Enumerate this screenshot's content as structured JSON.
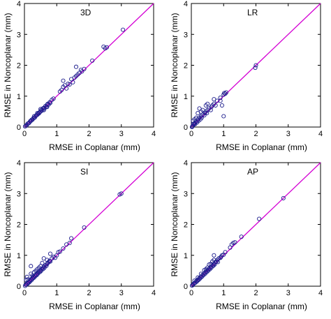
{
  "chart_data": [
    {
      "type": "scatter",
      "title": "3D",
      "xlabel": "RMSE  in  Coplanar  (mm)",
      "ylabel": "RMSE  in  Noncoplanar  (mm)",
      "xlim": [
        0,
        4
      ],
      "ylim": [
        0,
        4
      ],
      "xticks": [
        "0",
        "1",
        "2",
        "3",
        "4"
      ],
      "yticks": [
        "0",
        "1",
        "2",
        "3",
        "4"
      ],
      "grid": false,
      "reference_line": {
        "x": [
          0,
          4
        ],
        "y": [
          0,
          4
        ]
      },
      "points": [
        [
          0.02,
          0.02
        ],
        [
          0.05,
          0.05
        ],
        [
          0.08,
          0.07
        ],
        [
          0.1,
          0.11
        ],
        [
          0.12,
          0.12
        ],
        [
          0.15,
          0.14
        ],
        [
          0.18,
          0.19
        ],
        [
          0.2,
          0.2
        ],
        [
          0.22,
          0.23
        ],
        [
          0.25,
          0.24
        ],
        [
          0.27,
          0.28
        ],
        [
          0.3,
          0.3
        ],
        [
          0.32,
          0.31
        ],
        [
          0.35,
          0.36
        ],
        [
          0.37,
          0.38
        ],
        [
          0.4,
          0.4
        ],
        [
          0.42,
          0.43
        ],
        [
          0.45,
          0.44
        ],
        [
          0.47,
          0.48
        ],
        [
          0.5,
          0.5
        ],
        [
          0.52,
          0.55
        ],
        [
          0.55,
          0.54
        ],
        [
          0.57,
          0.6
        ],
        [
          0.6,
          0.62
        ],
        [
          0.62,
          0.6
        ],
        [
          0.65,
          0.68
        ],
        [
          0.68,
          0.66
        ],
        [
          0.7,
          0.72
        ],
        [
          0.72,
          0.75
        ],
        [
          0.75,
          0.73
        ],
        [
          0.78,
          0.8
        ],
        [
          0.8,
          0.78
        ],
        [
          0.85,
          0.88
        ],
        [
          0.9,
          0.92
        ],
        [
          0.3,
          0.35
        ],
        [
          0.4,
          0.45
        ],
        [
          0.5,
          0.58
        ],
        [
          0.6,
          0.55
        ],
        [
          0.7,
          0.65
        ],
        [
          1.1,
          1.15
        ],
        [
          1.15,
          1.2
        ],
        [
          1.2,
          1.3
        ],
        [
          1.25,
          1.35
        ],
        [
          1.3,
          1.25
        ],
        [
          1.35,
          1.4
        ],
        [
          1.4,
          1.38
        ],
        [
          1.45,
          1.55
        ],
        [
          1.5,
          1.45
        ],
        [
          1.55,
          1.6
        ],
        [
          1.6,
          1.65
        ],
        [
          1.65,
          1.7
        ],
        [
          1.7,
          1.75
        ],
        [
          1.75,
          1.85
        ],
        [
          1.78,
          1.8
        ],
        [
          1.2,
          1.5
        ],
        [
          1.6,
          1.95
        ],
        [
          1.85,
          1.88
        ],
        [
          2.1,
          2.15
        ],
        [
          2.45,
          2.6
        ],
        [
          2.5,
          2.55
        ],
        [
          2.55,
          2.58
        ],
        [
          3.05,
          3.15
        ]
      ]
    },
    {
      "type": "scatter",
      "title": "LR",
      "xlabel": "RMSE  in  Coplanar  (mm)",
      "ylabel": "RMSE  in  Noncoplanar  (mm)",
      "xlim": [
        0,
        4
      ],
      "ylim": [
        0,
        4
      ],
      "xticks": [
        "0",
        "1",
        "2",
        "3",
        "4"
      ],
      "yticks": [
        "0",
        "1",
        "2",
        "3",
        "4"
      ],
      "grid": false,
      "reference_line": {
        "x": [
          0,
          4
        ],
        "y": [
          0,
          4
        ]
      },
      "points": [
        [
          0.02,
          0.0
        ],
        [
          0.03,
          0.02
        ],
        [
          0.05,
          0.05
        ],
        [
          0.06,
          0.1
        ],
        [
          0.08,
          0.08
        ],
        [
          0.1,
          0.12
        ],
        [
          0.12,
          0.1
        ],
        [
          0.15,
          0.18
        ],
        [
          0.18,
          0.15
        ],
        [
          0.2,
          0.25
        ],
        [
          0.22,
          0.2
        ],
        [
          0.25,
          0.3
        ],
        [
          0.05,
          0.2
        ],
        [
          0.1,
          0.25
        ],
        [
          0.28,
          0.25
        ],
        [
          0.3,
          0.35
        ],
        [
          0.32,
          0.3
        ],
        [
          0.35,
          0.4
        ],
        [
          0.15,
          0.3
        ],
        [
          0.4,
          0.38
        ],
        [
          0.42,
          0.45
        ],
        [
          0.45,
          0.5
        ],
        [
          0.48,
          0.45
        ],
        [
          0.5,
          0.55
        ],
        [
          0.2,
          0.45
        ],
        [
          0.3,
          0.5
        ],
        [
          0.35,
          0.55
        ],
        [
          0.55,
          0.6
        ],
        [
          0.6,
          0.55
        ],
        [
          0.62,
          0.65
        ],
        [
          0.25,
          0.6
        ],
        [
          0.65,
          0.7
        ],
        [
          0.45,
          0.7
        ],
        [
          0.7,
          0.75
        ],
        [
          0.5,
          0.75
        ],
        [
          0.75,
          0.7
        ],
        [
          0.8,
          0.85
        ],
        [
          0.7,
          0.9
        ],
        [
          0.9,
          0.85
        ],
        [
          0.95,
          0.7
        ],
        [
          0.9,
          0.95
        ],
        [
          1.0,
          1.05
        ],
        [
          1.02,
          1.1
        ],
        [
          1.05,
          1.08
        ],
        [
          1.08,
          1.12
        ],
        [
          1.0,
          0.35
        ],
        [
          1.98,
          1.92
        ],
        [
          2.0,
          2.0
        ]
      ]
    },
    {
      "type": "scatter",
      "title": "SI",
      "xlabel": "RMSE  in  Coplanar  (mm)",
      "ylabel": "RMSE  in  Noncoplanar  (mm)",
      "xlim": [
        0,
        4
      ],
      "ylim": [
        0,
        4
      ],
      "xticks": [
        "0",
        "1",
        "2",
        "3",
        "4"
      ],
      "yticks": [
        "0",
        "1",
        "2",
        "3",
        "4"
      ],
      "grid": false,
      "reference_line": {
        "x": [
          0,
          4
        ],
        "y": [
          0,
          4
        ]
      },
      "points": [
        [
          0.02,
          0.01
        ],
        [
          0.04,
          0.05
        ],
        [
          0.06,
          0.05
        ],
        [
          0.08,
          0.1
        ],
        [
          0.1,
          0.08
        ],
        [
          0.12,
          0.13
        ],
        [
          0.14,
          0.12
        ],
        [
          0.16,
          0.18
        ],
        [
          0.18,
          0.16
        ],
        [
          0.2,
          0.22
        ],
        [
          0.22,
          0.2
        ],
        [
          0.24,
          0.26
        ],
        [
          0.26,
          0.25
        ],
        [
          0.28,
          0.3
        ],
        [
          0.3,
          0.28
        ],
        [
          0.32,
          0.34
        ],
        [
          0.34,
          0.33
        ],
        [
          0.36,
          0.38
        ],
        [
          0.38,
          0.36
        ],
        [
          0.4,
          0.42
        ],
        [
          0.42,
          0.41
        ],
        [
          0.45,
          0.47
        ],
        [
          0.48,
          0.46
        ],
        [
          0.5,
          0.52
        ],
        [
          0.52,
          0.5
        ],
        [
          0.55,
          0.57
        ],
        [
          0.58,
          0.56
        ],
        [
          0.6,
          0.63
        ],
        [
          0.62,
          0.6
        ],
        [
          0.65,
          0.68
        ],
        [
          0.68,
          0.66
        ],
        [
          0.7,
          0.72
        ],
        [
          0.05,
          0.2
        ],
        [
          0.08,
          0.3
        ],
        [
          0.1,
          0.22
        ],
        [
          0.2,
          0.4
        ],
        [
          0.25,
          0.35
        ],
        [
          0.3,
          0.45
        ],
        [
          0.35,
          0.5
        ],
        [
          0.4,
          0.55
        ],
        [
          0.45,
          0.6
        ],
        [
          0.5,
          0.65
        ],
        [
          0.55,
          0.75
        ],
        [
          0.2,
          0.65
        ],
        [
          0.6,
          0.9
        ],
        [
          0.7,
          0.85
        ],
        [
          0.72,
          0.75
        ],
        [
          0.75,
          0.78
        ],
        [
          0.78,
          0.82
        ],
        [
          0.8,
          0.8
        ],
        [
          0.85,
          0.9
        ],
        [
          0.9,
          0.95
        ],
        [
          0.95,
          0.92
        ],
        [
          1.0,
          1.0
        ],
        [
          0.8,
          1.05
        ],
        [
          1.05,
          1.1
        ],
        [
          1.1,
          1.12
        ],
        [
          1.2,
          1.22
        ],
        [
          1.3,
          1.35
        ],
        [
          1.4,
          1.4
        ],
        [
          1.45,
          1.55
        ],
        [
          1.85,
          1.9
        ],
        [
          2.95,
          2.97
        ],
        [
          3.0,
          3.0
        ]
      ]
    },
    {
      "type": "scatter",
      "title": "AP",
      "xlabel": "RMSE  in  Coplanar  (mm)",
      "ylabel": "RMSE  in  Noncoplanar  (mm)",
      "xlim": [
        0,
        4
      ],
      "ylim": [
        0,
        4
      ],
      "xticks": [
        "0",
        "1",
        "2",
        "3",
        "4"
      ],
      "yticks": [
        "0",
        "1",
        "2",
        "3",
        "4"
      ],
      "grid": false,
      "reference_line": {
        "x": [
          0,
          4
        ],
        "y": [
          0,
          4
        ]
      },
      "points": [
        [
          0.02,
          0.02
        ],
        [
          0.05,
          0.04
        ],
        [
          0.07,
          0.08
        ],
        [
          0.1,
          0.1
        ],
        [
          0.12,
          0.11
        ],
        [
          0.15,
          0.16
        ],
        [
          0.17,
          0.15
        ],
        [
          0.2,
          0.21
        ],
        [
          0.22,
          0.2
        ],
        [
          0.25,
          0.26
        ],
        [
          0.27,
          0.25
        ],
        [
          0.3,
          0.31
        ],
        [
          0.32,
          0.3
        ],
        [
          0.35,
          0.37
        ],
        [
          0.37,
          0.35
        ],
        [
          0.4,
          0.42
        ],
        [
          0.42,
          0.4
        ],
        [
          0.45,
          0.47
        ],
        [
          0.47,
          0.45
        ],
        [
          0.5,
          0.52
        ],
        [
          0.52,
          0.5
        ],
        [
          0.55,
          0.57
        ],
        [
          0.57,
          0.55
        ],
        [
          0.6,
          0.62
        ],
        [
          0.62,
          0.6
        ],
        [
          0.65,
          0.67
        ],
        [
          0.68,
          0.66
        ],
        [
          0.7,
          0.72
        ],
        [
          0.72,
          0.7
        ],
        [
          0.75,
          0.78
        ],
        [
          0.1,
          0.18
        ],
        [
          0.2,
          0.28
        ],
        [
          0.3,
          0.4
        ],
        [
          0.4,
          0.52
        ],
        [
          0.45,
          0.55
        ],
        [
          0.5,
          0.6
        ],
        [
          0.55,
          0.7
        ],
        [
          0.6,
          0.72
        ],
        [
          0.65,
          0.8
        ],
        [
          0.7,
          0.85
        ],
        [
          0.78,
          0.8
        ],
        [
          0.8,
          0.85
        ],
        [
          0.82,
          0.78
        ],
        [
          0.85,
          0.9
        ],
        [
          0.9,
          0.92
        ],
        [
          0.92,
          0.95
        ],
        [
          0.95,
          1.0
        ],
        [
          0.7,
          1.0
        ],
        [
          1.0,
          1.02
        ],
        [
          1.05,
          1.1
        ],
        [
          1.2,
          1.25
        ],
        [
          1.25,
          1.35
        ],
        [
          1.3,
          1.4
        ],
        [
          1.35,
          1.42
        ],
        [
          1.55,
          1.6
        ],
        [
          2.1,
          2.18
        ],
        [
          2.85,
          2.85
        ]
      ]
    }
  ]
}
